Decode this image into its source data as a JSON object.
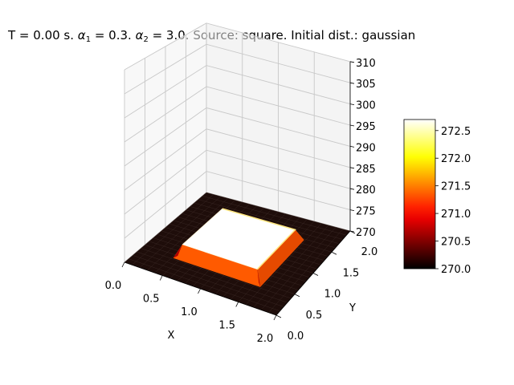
{
  "chart_data": {
    "type": "surface3d",
    "title": {
      "prefix": "T = 0.00 s. ",
      "alpha1_symbol": "α",
      "alpha1_sub": "1",
      "alpha1_rest": " = 0.3. ",
      "alpha2_symbol": "α",
      "alpha2_sub": "2",
      "alpha2_rest": " = 3.0. Source: square. Initial dist.: gaussian"
    },
    "xlabel": "X",
    "ylabel": "Y",
    "zlabel": "",
    "x_ticks": [
      "0.0",
      "0.5",
      "1.0",
      "1.5",
      "2.0"
    ],
    "y_ticks": [
      "0.0",
      "0.5",
      "1.0",
      "1.5",
      "2.0"
    ],
    "z_ticks": [
      "270",
      "275",
      "280",
      "285",
      "290",
      "295",
      "300",
      "305",
      "310"
    ],
    "xlim": [
      0,
      2
    ],
    "ylim": [
      0,
      2
    ],
    "zlim": [
      270,
      310
    ],
    "surface": {
      "base_value": 270.0,
      "plateau_value": 272.7,
      "plateau_x": [
        0.5,
        1.5
      ],
      "plateau_y": [
        0.5,
        1.5
      ]
    },
    "colorbar": {
      "colormap": "hot",
      "min": 270.0,
      "max": 272.7,
      "ticks": [
        "270.0",
        "270.5",
        "271.0",
        "271.5",
        "272.0",
        "272.5"
      ]
    },
    "grid": true
  }
}
